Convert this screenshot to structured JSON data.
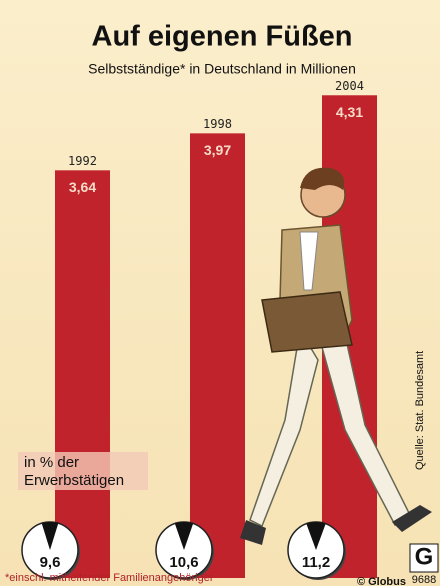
{
  "chart_data": {
    "type": "bar",
    "title": "Auf eigenen Füßen",
    "subtitle": "Selbstständige* in Deutschland in Millionen",
    "categories": [
      "1992",
      "1998",
      "2004"
    ],
    "values": [
      3.64,
      3.97,
      4.31
    ],
    "value_labels": [
      "3,64",
      "3,97",
      "4,31"
    ],
    "color": "#c1232c",
    "share": {
      "label_lines": [
        "in % der",
        "Erwerbstätigen"
      ],
      "values": [
        9.6,
        10.6,
        11.2
      ],
      "value_labels": [
        "9,6",
        "10,6",
        "11,2"
      ]
    },
    "footnote": "*einschl. mithelfender Familienangehöriger",
    "source": "Quelle: Stat. Bundesamt",
    "credit": "© Globus",
    "logo": "G",
    "number": "9688"
  }
}
